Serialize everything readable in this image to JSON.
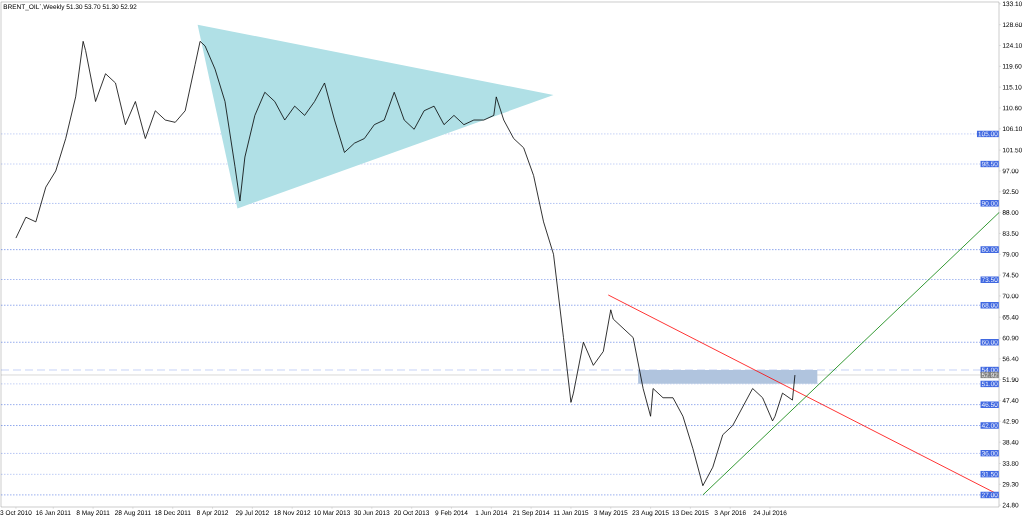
{
  "chart_data": {
    "type": "line",
    "title": "BRENT_OIL`,Weekly  51.30 53.70 51.30 52.92",
    "xlim": [
      "2010-08-22",
      "2018-04-29"
    ],
    "ylim": [
      24.4,
      133.5
    ],
    "xticks": [
      {
        "value": "2010-10-03",
        "label": "3 Oct 2010"
      },
      {
        "value": "2011-01-16",
        "label": "16 Jan 2011"
      },
      {
        "value": "2011-05-08",
        "label": "8 May 2011"
      },
      {
        "value": "2011-08-28",
        "label": "28 Aug 2011"
      },
      {
        "value": "2011-12-18",
        "label": "18 Dec 2011"
      },
      {
        "value": "2012-04-08",
        "label": "8 Apr 2012"
      },
      {
        "value": "2012-07-29",
        "label": "29 Jul 2012"
      },
      {
        "value": "2012-11-18",
        "label": "18 Nov 2012"
      },
      {
        "value": "2013-03-10",
        "label": "10 Mar 2013"
      },
      {
        "value": "2013-06-30",
        "label": "30 Jun 2013"
      },
      {
        "value": "2013-10-20",
        "label": "20 Oct 2013"
      },
      {
        "value": "2014-02-09",
        "label": "9 Feb 2014"
      },
      {
        "value": "2014-06-01",
        "label": "1 Jun 2014"
      },
      {
        "value": "2014-09-21",
        "label": "21 Sep 2014"
      },
      {
        "value": "2015-01-11",
        "label": "11 Jan 2015"
      },
      {
        "value": "2015-05-03",
        "label": "3 May 2015"
      },
      {
        "value": "2015-08-23",
        "label": "23 Aug 2015"
      },
      {
        "value": "2015-12-13",
        "label": "13 Dec 2015"
      },
      {
        "value": "2016-04-03",
        "label": "3 Apr 2016"
      },
      {
        "value": "2016-07-24",
        "label": "24 Jul 2016"
      }
    ],
    "yticks": [
      {
        "value": 133.1,
        "label": "133.10"
      },
      {
        "value": 128.6,
        "label": "128.60"
      },
      {
        "value": 124.1,
        "label": "124.10"
      },
      {
        "value": 119.6,
        "label": "119.60"
      },
      {
        "value": 115.1,
        "label": "115.10"
      },
      {
        "value": 110.6,
        "label": "110.60"
      },
      {
        "value": 106.1,
        "label": "106.10"
      },
      {
        "value": 101.5,
        "label": "101.50"
      },
      {
        "value": 97,
        "label": "97.00"
      },
      {
        "value": 92.5,
        "label": "92.50"
      },
      {
        "value": 88,
        "label": "88.00"
      },
      {
        "value": 83.5,
        "label": "83.50"
      },
      {
        "value": 79,
        "label": "79.00"
      },
      {
        "value": 74.5,
        "label": "74.50"
      },
      {
        "value": 70,
        "label": "70.00"
      },
      {
        "value": 65.4,
        "label": "65.40"
      },
      {
        "value": 60.9,
        "label": "60.90"
      },
      {
        "value": 56.4,
        "label": "56.40"
      },
      {
        "value": 51.9,
        "label": "51.90"
      },
      {
        "value": 47.4,
        "label": "47.40"
      },
      {
        "value": 42.9,
        "label": "42.90"
      },
      {
        "value": 38.4,
        "label": "38.40"
      },
      {
        "value": 33.8,
        "label": "33.80"
      },
      {
        "value": 29.3,
        "label": "29.30"
      },
      {
        "value": 24.8,
        "label": "24.80"
      }
    ],
    "series": [
      {
        "type": "area",
        "color": "#b0e0e6",
        "x": [
          "2012-02-26",
          "2014-11-23",
          "2012-06-17",
          "2012-02-26"
        ],
        "values": [
          128.6,
          113.4,
          88.9,
          128.6
        ]
      },
      {
        "type": "area",
        "color": "#b0c4de",
        "x": [
          "2015-07-19",
          "2016-12-04",
          "2016-12-04",
          "2015-07-19",
          "2015-07-19"
        ],
        "values": [
          54,
          54,
          51,
          51,
          54
        ]
      },
      {
        "color": "#000000",
        "x": [
          "2010-10-03",
          "2010-10-31",
          "2010-11-28",
          "2010-12-26",
          "2011-01-23",
          "2011-02-20",
          "2011-03-20",
          "2011-04-10",
          "2011-04-17",
          "2011-05-15",
          "2011-06-12",
          "2011-07-10",
          "2011-08-07",
          "2011-09-04",
          "2011-10-02",
          "2011-10-30",
          "2011-11-27",
          "2011-12-25",
          "2012-01-22",
          "2012-02-19",
          "2012-03-04",
          "2012-03-18",
          "2012-04-15",
          "2012-05-13",
          "2012-06-10",
          "2012-06-24",
          "2012-07-08",
          "2012-08-05",
          "2012-09-02",
          "2012-09-30",
          "2012-10-28",
          "2012-11-25",
          "2012-12-23",
          "2013-01-20",
          "2013-02-17",
          "2013-03-17",
          "2013-04-14",
          "2013-05-12",
          "2013-06-09",
          "2013-07-07",
          "2013-08-04",
          "2013-09-01",
          "2013-09-29",
          "2013-10-27",
          "2013-11-24",
          "2013-12-22",
          "2014-01-19",
          "2014-02-16",
          "2014-03-16",
          "2014-04-13",
          "2014-05-11",
          "2014-06-08",
          "2014-06-15",
          "2014-07-06",
          "2014-08-03",
          "2014-08-31",
          "2014-09-28",
          "2014-10-26",
          "2014-11-23",
          "2014-12-21",
          "2015-01-11",
          "2015-01-18",
          "2015-02-15",
          "2015-03-15",
          "2015-04-12",
          "2015-05-03",
          "2015-05-10",
          "2015-06-07",
          "2015-07-05",
          "2015-08-02",
          "2015-08-23",
          "2015-08-30",
          "2015-09-27",
          "2015-10-25",
          "2015-11-22",
          "2015-12-20",
          "2016-01-17",
          "2016-02-14",
          "2016-03-13",
          "2016-04-10",
          "2016-05-08",
          "2016-06-05",
          "2016-07-03",
          "2016-07-31",
          "2016-08-07",
          "2016-08-28",
          "2016-09-25",
          "2016-10-02"
        ],
        "values": [
          82.5,
          87,
          86,
          93.5,
          97,
          104,
          113,
          125,
          123,
          112,
          118,
          116,
          107,
          112,
          104,
          110,
          108,
          107.5,
          110,
          120,
          125,
          124,
          119,
          112,
          98,
          90.5,
          100,
          109,
          114,
          112,
          108,
          111,
          109,
          112,
          116,
          108,
          101,
          103,
          104,
          107,
          108,
          114,
          108,
          106,
          110,
          111,
          107,
          109,
          107,
          108,
          108,
          109,
          113,
          108,
          104,
          102,
          96,
          86,
          79,
          61,
          47,
          49,
          60,
          55,
          58,
          67,
          65,
          63,
          61,
          50,
          44,
          50,
          48,
          48,
          44,
          37,
          29,
          33,
          40,
          42,
          46,
          50,
          48,
          43,
          44,
          49,
          47.5,
          52.9
        ]
      },
      {
        "type": "line",
        "color": "#ff0000",
        "x": [
          "2015-04-26",
          "2018-04-29"
        ],
        "values": [
          70.2,
          27.0
        ]
      },
      {
        "type": "line",
        "color": "#008000",
        "x": [
          "2016-01-17",
          "2018-04-29"
        ],
        "values": [
          27.0,
          88.0
        ]
      }
    ],
    "ref_lines": [
      {
        "axis": "y",
        "value": 105,
        "label": "105.00",
        "color": "#4169e1",
        "line_style": "dotted"
      },
      {
        "axis": "y",
        "value": 98.5,
        "label": "98.50",
        "color": "#4169e1",
        "line_style": "dotted"
      },
      {
        "axis": "y",
        "value": 90,
        "label": "90.00",
        "color": "#4169e1",
        "line_style": "dotted"
      },
      {
        "axis": "y",
        "value": 80,
        "label": "80.00",
        "color": "#4169e1",
        "line_style": "dotted"
      },
      {
        "axis": "y",
        "value": 73.5,
        "label": "73.50",
        "color": "#4169e1",
        "line_style": "dotted"
      },
      {
        "axis": "y",
        "value": 68,
        "label": "68.00",
        "color": "#4169e1",
        "line_style": "dotted"
      },
      {
        "axis": "y",
        "value": 60,
        "label": "60.00",
        "color": "#4169e1",
        "line_style": "dotted"
      },
      {
        "axis": "y",
        "value": 54,
        "label": "54.00",
        "color": "#4169e1",
        "line_style": "dashed"
      },
      {
        "axis": "y",
        "value": 52.92,
        "label": "52.92",
        "color": "#808080",
        "line_style": "solid"
      },
      {
        "axis": "y",
        "value": 51,
        "label": "51.00",
        "color": "#4169e1",
        "line_style": "dotted"
      },
      {
        "axis": "y",
        "value": 46.5,
        "label": "46.50",
        "color": "#4169e1",
        "line_style": "dotted"
      },
      {
        "axis": "y",
        "value": 42,
        "label": "42.00",
        "color": "#4169e1",
        "line_style": "dotted"
      },
      {
        "axis": "y",
        "value": 36,
        "label": "36.00",
        "color": "#4169e1",
        "line_style": "dotted"
      },
      {
        "axis": "y",
        "value": 31.5,
        "label": "31.50",
        "color": "#4169e1",
        "line_style": "dotted"
      },
      {
        "axis": "y",
        "value": 27,
        "label": "27.00",
        "color": "#4169e1",
        "line_style": "dotted"
      }
    ]
  }
}
